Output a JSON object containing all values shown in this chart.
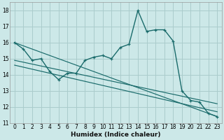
{
  "title": "",
  "xlabel": "Humidex (Indice chaleur)",
  "xlim": [
    -0.5,
    23.5
  ],
  "ylim": [
    11,
    18.5
  ],
  "yticks": [
    11,
    12,
    13,
    14,
    15,
    16,
    17,
    18
  ],
  "xticks": [
    0,
    1,
    2,
    3,
    4,
    5,
    6,
    7,
    8,
    9,
    10,
    11,
    12,
    13,
    14,
    15,
    16,
    17,
    18,
    19,
    20,
    21,
    22,
    23
  ],
  "bg_color": "#cce8e8",
  "grid_color": "#aacccc",
  "line_color": "#1a6b6b",
  "main_line_x": [
    0,
    1,
    2,
    3,
    4,
    5,
    6,
    7,
    8,
    9,
    10,
    11,
    12,
    13,
    14,
    15,
    16,
    17,
    18,
    19,
    20,
    21,
    22,
    23
  ],
  "main_line_y": [
    16.0,
    15.6,
    14.9,
    15.0,
    14.2,
    13.7,
    14.1,
    14.1,
    14.9,
    15.1,
    15.2,
    15.0,
    15.7,
    15.9,
    18.0,
    16.7,
    16.8,
    16.8,
    16.1,
    13.0,
    12.4,
    12.3,
    11.6,
    11.4
  ],
  "trend1_x": [
    0,
    23
  ],
  "trend1_y": [
    16.0,
    11.4
  ],
  "trend2_x": [
    0,
    23
  ],
  "trend2_y": [
    14.9,
    12.2
  ],
  "trend3_x": [
    0,
    23
  ],
  "trend3_y": [
    14.6,
    11.7
  ],
  "xlabel_fontsize": 6.5,
  "tick_fontsize": 5.5,
  "linewidth": 1.0,
  "marker_size": 3.5
}
